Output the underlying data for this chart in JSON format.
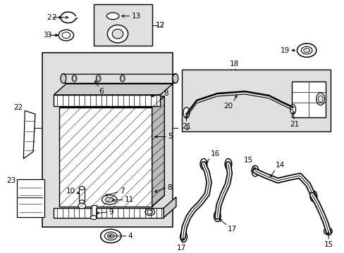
{
  "bg_color": "#ffffff",
  "line_color": "#000000",
  "gray_fill": "#e0e0e0",
  "white_fill": "#ffffff"
}
